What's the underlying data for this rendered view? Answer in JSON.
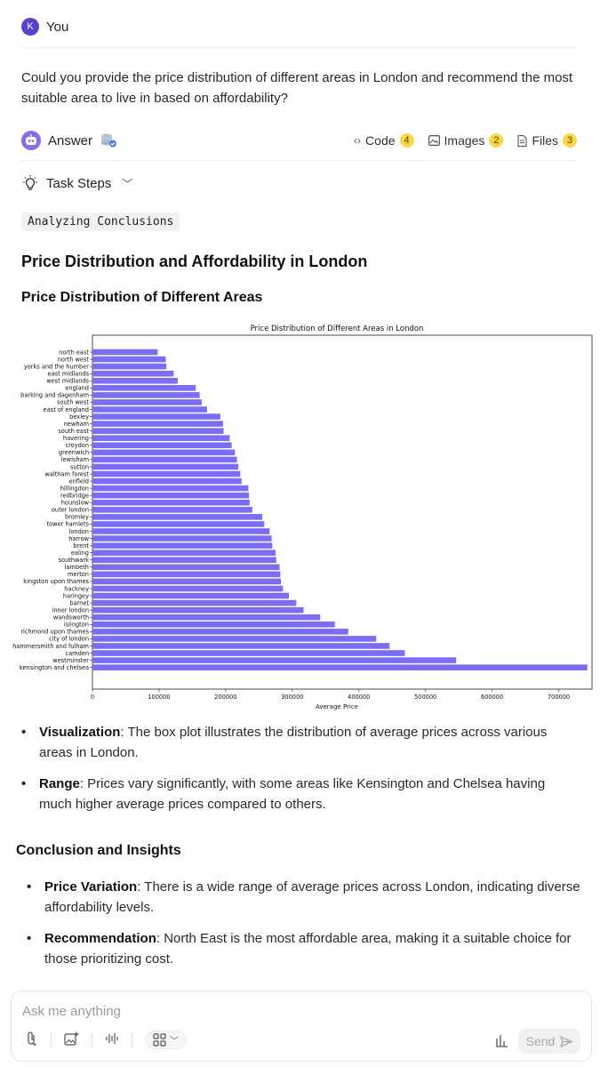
{
  "user": {
    "initial": "K",
    "name": "You"
  },
  "question": "Could you provide the price distribution of different areas in London and recommend the most suitable area to live in based on affordability?",
  "answer_header": {
    "label": "Answer",
    "tools": [
      {
        "label": "Code",
        "count": "4",
        "icon": "code-brackets-icon"
      },
      {
        "label": "Images",
        "count": "2",
        "icon": "image-icon"
      },
      {
        "label": "Files",
        "count": "3",
        "icon": "file-icon"
      }
    ]
  },
  "task_steps": {
    "label": "Task Steps"
  },
  "status_tag": "Analyzing Conclusions",
  "headings": {
    "h1": "Price Distribution and Affordability in London",
    "h2": "Price Distribution of Different Areas",
    "h3": "Conclusion and Insights"
  },
  "chart_data": {
    "type": "bar",
    "orientation": "horizontal",
    "title": "Price Distribution of Different Areas in London",
    "xlabel": "Average Price",
    "ylabel": "",
    "xlim": [
      0,
      750000
    ],
    "xticks": [
      "0",
      "100000",
      "200000",
      "300000",
      "400000",
      "500000",
      "600000",
      "700000"
    ],
    "xtick_values": [
      0,
      100000,
      200000,
      300000,
      400000,
      500000,
      600000,
      700000
    ],
    "bar_color": "#7b6ef5",
    "categories": [
      "north east",
      "north west",
      "yorks and the humber",
      "east midlands",
      "west midlands",
      "england",
      "barking and dagenham",
      "south west",
      "east of england",
      "bexley",
      "newham",
      "south east",
      "havering",
      "croydon",
      "greenwich",
      "lewisham",
      "sutton",
      "waltham forest",
      "enfield",
      "hillingdon",
      "redbridge",
      "hounslow",
      "outer london",
      "bromley",
      "tower hamlets",
      "london",
      "harrow",
      "brent",
      "ealing",
      "southwark",
      "lambeth",
      "merton",
      "kingston upon thames",
      "hackney",
      "haringey",
      "barnet",
      "inner london",
      "wandsworth",
      "islington",
      "richmond upon thames",
      "city of london",
      "hammersmith and fulham",
      "camden",
      "westminster",
      "kensington and chelsea"
    ],
    "values": [
      98000,
      110000,
      111000,
      122000,
      128000,
      155000,
      161000,
      164000,
      172000,
      192000,
      196000,
      197000,
      206000,
      209000,
      214000,
      217000,
      219000,
      222000,
      224000,
      234000,
      235000,
      236000,
      240000,
      255000,
      258000,
      266000,
      269000,
      270000,
      275000,
      276000,
      281000,
      282000,
      283000,
      286000,
      295000,
      306000,
      317000,
      342000,
      364000,
      384000,
      426000,
      446000,
      469000,
      546000,
      743000
    ]
  },
  "bullets_1": [
    {
      "term": "Visualization",
      "text": ": The box plot illustrates the distribution of average prices across various areas in London."
    },
    {
      "term": "Range",
      "text": ": Prices vary significantly, with some areas like Kensington and Chelsea having much higher average prices compared to others."
    }
  ],
  "bullets_2": [
    {
      "term": "Price Variation",
      "text": ": There is a wide range of average prices across London, indicating diverse affordability levels."
    },
    {
      "term": "Recommendation",
      "text": ": North East is the most affordable area, making it a suitable choice for those prioritizing cost."
    }
  ],
  "input": {
    "placeholder": "Ask me anything",
    "send_label": "Send"
  }
}
